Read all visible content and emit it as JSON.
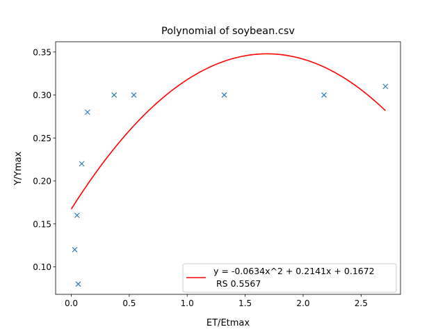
{
  "chart_data": {
    "type": "scatter",
    "title": "Polynomial of soybean.csv",
    "xlabel": "ET/Etmax",
    "ylabel": "Y/Ymax",
    "xlim": [
      -0.135,
      2.84
    ],
    "ylim": [
      0.068,
      0.362
    ],
    "xticks": [
      0.0,
      0.5,
      1.0,
      1.5,
      2.0,
      2.5
    ],
    "xtick_labels": [
      "0.0",
      "0.5",
      "1.0",
      "1.5",
      "2.0",
      "2.5"
    ],
    "yticks": [
      0.1,
      0.15,
      0.2,
      0.25,
      0.3,
      0.35
    ],
    "ytick_labels": [
      "0.10",
      "0.15",
      "0.20",
      "0.25",
      "0.30",
      "0.35"
    ],
    "grid": false,
    "legend_position": "lower-right",
    "colors": {
      "scatter": "#1f77b4",
      "fit": "#ff0000"
    },
    "series": [
      {
        "type": "scatter",
        "marker": "x",
        "x": [
          0.03,
          0.05,
          0.06,
          0.09,
          0.14,
          0.37,
          0.54,
          1.32,
          2.18,
          2.71
        ],
        "y": [
          0.12,
          0.16,
          0.08,
          0.22,
          0.28,
          0.3,
          0.3,
          0.3,
          0.3,
          0.31
        ]
      },
      {
        "type": "line",
        "name": "y = -0.0634x^2 + 0.2141x + 0.1672\n RS 0.5567",
        "coefficients": [
          -0.0634,
          0.2141,
          0.1672
        ],
        "x_range": [
          0.0,
          2.71
        ]
      }
    ],
    "legend": {
      "line1": "y = -0.0634x^2 + 0.2141x + 0.1672",
      "line2": " RS 0.5567"
    }
  }
}
